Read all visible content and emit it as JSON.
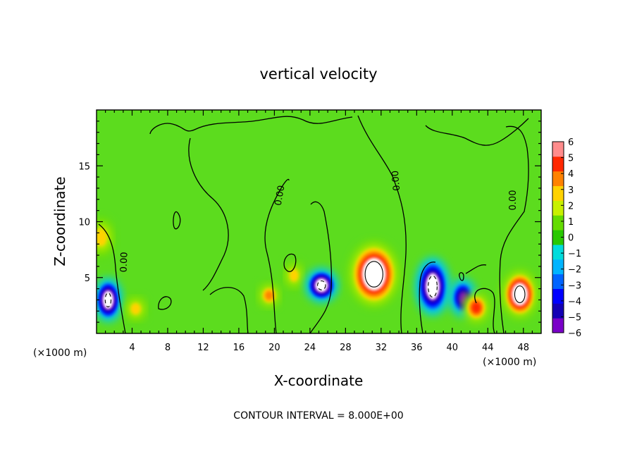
{
  "chart_data": {
    "type": "heatmap",
    "title": "vertical velocity",
    "xlabel": "X-coordinate",
    "ylabel": "Z-coordinate",
    "x_unit_left": "(×1000 m)",
    "x_unit_right": "(×1000 m)",
    "xlim": [
      0,
      50
    ],
    "ylim": [
      0,
      20
    ],
    "x_ticks": [
      4,
      8,
      12,
      16,
      20,
      24,
      28,
      32,
      36,
      40,
      44,
      48
    ],
    "x_tick_labels": [
      "4",
      "8",
      "12",
      "16",
      "20",
      "24",
      "28",
      "32",
      "36",
      "40",
      "44",
      "48"
    ],
    "y_ticks": [
      5,
      10,
      15
    ],
    "y_tick_labels": [
      "5",
      "10",
      "15"
    ],
    "colorbar": {
      "levels": [
        -6,
        -5,
        -4,
        -3,
        -2,
        -1,
        0,
        1,
        2,
        3,
        4,
        5,
        6
      ],
      "labels": [
        "−6",
        "−5",
        "−4",
        "−3",
        "−2",
        "−1",
        "0",
        "1",
        "2",
        "3",
        "4",
        "5",
        "6"
      ],
      "colors": [
        "#7a00c8",
        "#1400b4",
        "#0000ff",
        "#0064ff",
        "#00b4ff",
        "#00dcdc",
        "#28c800",
        "#64dc00",
        "#c8f000",
        "#ffd200",
        "#ff8200",
        "#ff2800",
        "#ff8c8c"
      ]
    },
    "contour_label": "0.00",
    "contour_interval_text": "CONTOUR INTERVAL = 8.000E+00",
    "features": [
      {
        "x": 0.5,
        "z": 8.6,
        "w": 1.3,
        "h": 2.2,
        "value": 3
      },
      {
        "x": 1.3,
        "z": 3.0,
        "w": 1.3,
        "h": 2.5,
        "value": -8
      },
      {
        "x": 4.4,
        "z": 2.2,
        "w": 0.9,
        "h": 1.0,
        "value": 3
      },
      {
        "x": 19.4,
        "z": 3.4,
        "w": 0.8,
        "h": 0.9,
        "value": 4
      },
      {
        "x": 22.2,
        "z": 5.2,
        "w": 0.6,
        "h": 1.2,
        "value": 3
      },
      {
        "x": 25.3,
        "z": 4.3,
        "w": 1.8,
        "h": 1.6,
        "value": -8
      },
      {
        "x": 31.2,
        "z": 5.3,
        "w": 4.0,
        "h": 4.6,
        "value": 8
      },
      {
        "x": 37.8,
        "z": 4.2,
        "w": 2.0,
        "h": 3.8,
        "value": -8
      },
      {
        "x": 41.2,
        "z": 3.2,
        "w": 1.2,
        "h": 2.0,
        "value": -6
      },
      {
        "x": 42.7,
        "z": 2.3,
        "w": 1.3,
        "h": 1.5,
        "value": 5
      },
      {
        "x": 47.6,
        "z": 3.5,
        "w": 2.3,
        "h": 3.0,
        "value": 8
      }
    ]
  }
}
